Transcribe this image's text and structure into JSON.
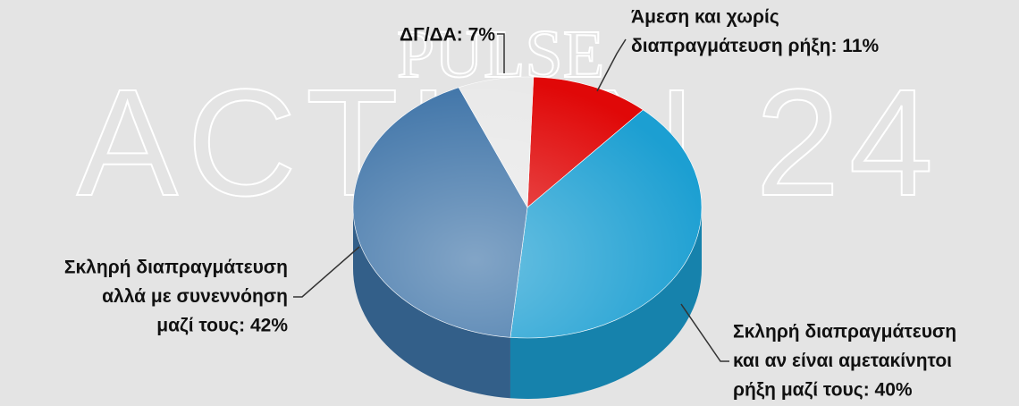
{
  "chart_data": {
    "type": "pie",
    "watermark": [
      "PULSE",
      "ACTION 24"
    ],
    "labels": [
      [
        "Άμεση και χωρίς",
        "διαπραγμάτευση ρήξη: 11%"
      ],
      [
        "Σκληρή διαπραγμάτευση",
        "και αν είναι αμετακίνητοι",
        "ρήξη μαζί τους: 40%"
      ],
      [
        "Σκληρή διαπραγμάτευση",
        "αλλά με συνεννόηση",
        "μαζί τους: 42%"
      ],
      [
        "ΔΓ/ΔΑ: 7%"
      ]
    ],
    "values": [
      11,
      40,
      42,
      7
    ],
    "colors": [
      "#e00808",
      "#1c9fd2",
      "#3f74a8",
      "#e9e9e9"
    ]
  }
}
